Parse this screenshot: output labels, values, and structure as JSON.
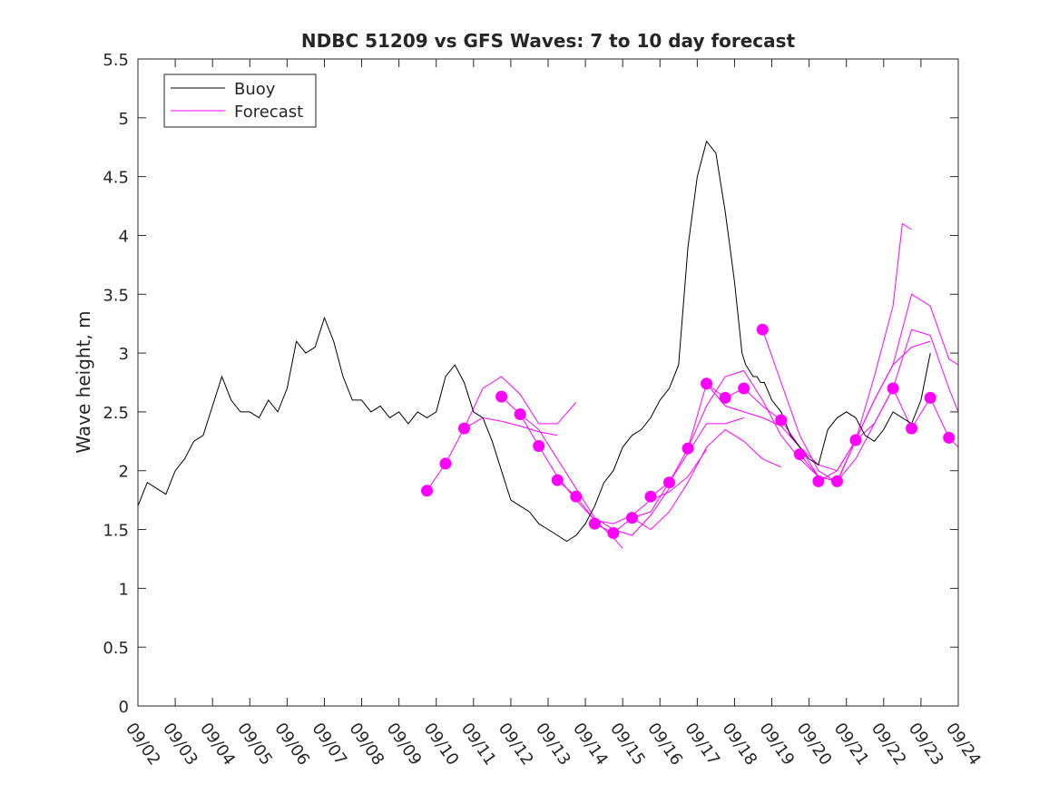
{
  "chart_data": {
    "type": "line",
    "title": "NDBC 51209 vs GFS Waves: 7 to 10 day forecast",
    "xlabel": "",
    "ylabel": "Wave height, m",
    "xlim": [
      0,
      22
    ],
    "ylim": [
      0,
      5.5
    ],
    "yticks": [
      "0",
      "0.5",
      "1",
      "1.5",
      "2",
      "2.5",
      "3",
      "3.5",
      "4",
      "4.5",
      "5",
      "5.5"
    ],
    "xticks": [
      "09/02",
      "09/03",
      "09/04",
      "09/05",
      "09/06",
      "09/07",
      "09/08",
      "09/09",
      "09/10",
      "09/11",
      "09/12",
      "09/13",
      "09/14",
      "09/15",
      "09/16",
      "09/17",
      "09/18",
      "09/19",
      "09/20",
      "09/21",
      "09/22",
      "09/23",
      "09/24"
    ],
    "legend_position": "top-left",
    "colors": {
      "buoy": "#000000",
      "forecast": "#ff00ff"
    },
    "series": [
      {
        "name": "Buoy",
        "x": [
          0.0,
          0.25,
          0.5,
          0.75,
          1.0,
          1.25,
          1.5,
          1.75,
          2.0,
          2.25,
          2.5,
          2.75,
          3.0,
          3.25,
          3.5,
          3.75,
          4.0,
          4.25,
          4.5,
          4.75,
          5.0,
          5.25,
          5.5,
          5.75,
          6.0,
          6.25,
          6.5,
          6.75,
          7.0,
          7.25,
          7.5,
          7.75,
          8.0,
          8.25,
          8.5,
          8.75,
          9.0,
          9.25,
          9.5,
          9.75,
          10.0,
          10.25,
          10.5,
          10.75,
          11.0,
          11.25,
          11.5,
          11.75,
          12.0,
          12.25,
          12.5,
          12.75,
          13.0,
          13.25,
          13.5,
          13.75,
          14.0,
          14.25,
          14.5,
          14.75,
          15.0,
          15.25,
          15.5,
          15.75,
          15.9,
          16.0,
          16.1,
          16.2,
          16.3,
          16.4,
          16.5,
          16.6,
          16.7,
          16.8,
          17.0,
          17.25,
          17.5,
          17.75,
          18.0,
          18.25,
          18.5,
          18.75,
          19.0,
          19.25,
          19.5,
          19.75,
          20.0,
          20.25,
          20.5,
          20.75,
          21.0,
          21.25
        ],
        "values": [
          1.7,
          1.9,
          1.85,
          1.8,
          2.0,
          2.1,
          2.25,
          2.3,
          2.55,
          2.8,
          2.6,
          2.5,
          2.5,
          2.45,
          2.6,
          2.5,
          2.7,
          3.1,
          3.0,
          3.05,
          3.3,
          3.1,
          2.8,
          2.6,
          2.6,
          2.5,
          2.55,
          2.45,
          2.5,
          2.4,
          2.5,
          2.45,
          2.5,
          2.8,
          2.9,
          2.75,
          2.5,
          2.45,
          2.25,
          2.0,
          1.75,
          1.7,
          1.65,
          1.55,
          1.5,
          1.45,
          1.4,
          1.45,
          1.55,
          1.7,
          1.9,
          2.0,
          2.2,
          2.3,
          2.35,
          2.45,
          2.6,
          2.7,
          2.9,
          3.9,
          4.5,
          4.8,
          4.7,
          4.2,
          3.85,
          3.6,
          3.3,
          3.0,
          2.9,
          2.85,
          2.8,
          2.8,
          2.75,
          2.75,
          2.6,
          2.5,
          2.3,
          2.2,
          2.1,
          2.05,
          2.35,
          2.45,
          2.5,
          2.45,
          2.3,
          2.25,
          2.35,
          2.5,
          2.45,
          2.4,
          2.6,
          3.0
        ]
      },
      {
        "name": "Forecast",
        "points": [
          {
            "x": 7.75,
            "y": 1.83
          },
          {
            "x": 8.25,
            "y": 2.06
          },
          {
            "x": 8.75,
            "y": 2.36
          },
          {
            "x": 9.75,
            "y": 2.63
          },
          {
            "x": 10.25,
            "y": 2.48
          },
          {
            "x": 10.75,
            "y": 2.21
          },
          {
            "x": 11.25,
            "y": 1.92
          },
          {
            "x": 11.75,
            "y": 1.78
          },
          {
            "x": 12.25,
            "y": 1.55
          },
          {
            "x": 12.75,
            "y": 1.47
          },
          {
            "x": 13.25,
            "y": 1.6
          },
          {
            "x": 13.75,
            "y": 1.78
          },
          {
            "x": 14.25,
            "y": 1.9
          },
          {
            "x": 14.75,
            "y": 2.19
          },
          {
            "x": 15.25,
            "y": 2.74
          },
          {
            "x": 15.75,
            "y": 2.62
          },
          {
            "x": 16.25,
            "y": 2.7
          },
          {
            "x": 16.75,
            "y": 3.2
          },
          {
            "x": 17.25,
            "y": 2.43
          },
          {
            "x": 17.75,
            "y": 2.14
          },
          {
            "x": 18.25,
            "y": 1.91
          },
          {
            "x": 18.75,
            "y": 1.91
          },
          {
            "x": 19.25,
            "y": 2.26
          },
          {
            "x": 20.25,
            "y": 2.7
          },
          {
            "x": 20.75,
            "y": 2.36
          },
          {
            "x": 21.25,
            "y": 2.62
          },
          {
            "x": 21.75,
            "y": 2.28
          }
        ],
        "runs": [
          {
            "x": [
              7.75,
              8.25,
              8.75,
              9.25,
              9.75,
              10.25,
              10.75,
              11.25
            ],
            "values": [
              1.83,
              2.06,
              2.36,
              2.45,
              2.42,
              2.38,
              2.33,
              2.3
            ]
          },
          {
            "x": [
              8.75,
              9.25,
              9.75,
              10.25,
              10.75,
              11.25,
              11.75
            ],
            "values": [
              2.36,
              2.7,
              2.8,
              2.65,
              2.4,
              2.4,
              2.58
            ]
          },
          {
            "x": [
              9.75,
              10.25,
              10.75,
              11.25,
              11.75,
              12.25,
              12.75,
              13.0
            ],
            "values": [
              2.63,
              2.48,
              2.21,
              1.95,
              1.75,
              1.58,
              1.43,
              1.34
            ]
          },
          {
            "x": [
              10.25,
              10.75,
              11.25,
              11.75,
              12.25,
              12.75,
              13.25,
              13.75,
              14.25
            ],
            "values": [
              2.48,
              2.35,
              2.1,
              1.85,
              1.6,
              1.5,
              1.45,
              1.62,
              1.85
            ]
          },
          {
            "x": [
              11.25,
              11.75,
              12.25,
              12.75,
              13.25,
              13.75,
              14.25,
              14.75,
              15.25
            ],
            "values": [
              1.92,
              1.78,
              1.58,
              1.55,
              1.62,
              1.75,
              1.82,
              1.95,
              2.18
            ]
          },
          {
            "x": [
              12.25,
              12.75,
              13.25,
              13.75,
              14.25,
              14.75,
              15.25,
              15.75,
              16.25
            ],
            "values": [
              1.55,
              1.47,
              1.6,
              1.65,
              1.9,
              2.15,
              2.4,
              2.4,
              2.45
            ]
          },
          {
            "x": [
              13.25,
              13.75,
              14.25,
              14.75,
              15.25,
              15.75,
              16.25,
              16.75,
              17.25
            ],
            "values": [
              1.6,
              1.5,
              1.65,
              1.9,
              2.2,
              2.35,
              2.25,
              2.1,
              2.03
            ]
          },
          {
            "x": [
              13.75,
              14.25,
              14.75,
              15.25,
              15.75,
              16.25,
              16.75,
              17.25,
              17.75,
              18.25
            ],
            "values": [
              1.78,
              1.9,
              2.19,
              2.55,
              2.8,
              2.85,
              2.6,
              2.3,
              2.1,
              1.95
            ]
          },
          {
            "x": [
              14.75,
              15.25,
              15.75,
              16.25,
              16.75,
              17.25,
              17.75,
              18.25,
              18.75
            ],
            "values": [
              2.19,
              2.74,
              2.62,
              2.7,
              2.55,
              2.43,
              2.2,
              1.95,
              1.91
            ]
          },
          {
            "x": [
              15.25,
              15.75,
              16.25,
              16.75,
              17.25,
              17.75,
              18.25,
              18.75,
              19.25
            ],
            "values": [
              2.74,
              2.55,
              2.5,
              2.45,
              2.38,
              2.2,
              2.05,
              2.0,
              2.26
            ]
          },
          {
            "x": [
              16.75,
              17.25,
              17.75,
              18.25,
              18.75,
              19.25,
              19.75,
              20.25,
              20.75,
              21.25
            ],
            "values": [
              3.2,
              2.75,
              2.3,
              2.0,
              1.9,
              2.26,
              2.6,
              2.9,
              3.05,
              3.1
            ]
          },
          {
            "x": [
              17.75,
              18.25,
              18.75,
              19.25,
              19.75,
              20.25,
              20.5,
              20.75
            ],
            "values": [
              2.14,
              1.95,
              1.91,
              2.26,
              2.8,
              3.4,
              4.1,
              4.05
            ]
          },
          {
            "x": [
              18.25,
              18.75,
              19.25,
              19.75,
              20.25,
              20.75,
              21.25,
              21.75,
              22.0
            ],
            "values": [
              1.91,
              2.0,
              2.26,
              2.6,
              2.9,
              3.5,
              3.4,
              2.95,
              2.9
            ]
          },
          {
            "x": [
              18.75,
              19.25,
              19.75,
              20.25,
              20.75,
              21.25,
              21.75,
              22.0
            ],
            "values": [
              1.91,
              2.1,
              2.4,
              2.7,
              3.2,
              3.15,
              2.7,
              2.5
            ]
          },
          {
            "x": [
              19.25,
              19.75,
              20.25,
              20.75,
              21.25,
              21.75,
              22.0
            ],
            "values": [
              2.26,
              2.4,
              2.7,
              2.36,
              2.62,
              2.28,
              2.2
            ]
          }
        ]
      }
    ]
  }
}
